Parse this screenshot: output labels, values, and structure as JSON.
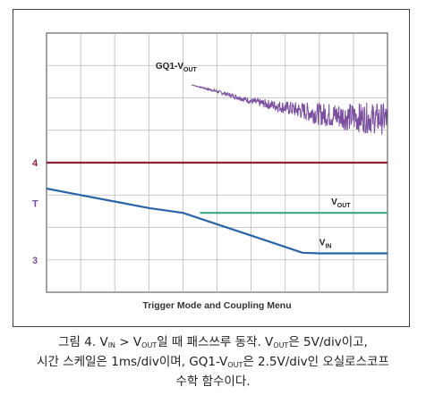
{
  "chart_data": {
    "type": "line",
    "footer": "Trigger Mode and Coupling Menu",
    "grid": true,
    "divisions": {
      "x": 10,
      "y": 8
    },
    "marker_labels": [
      "4",
      "T",
      "3"
    ],
    "series": [
      {
        "name_main": "GQ1-V",
        "name_sub": "OUT",
        "color": "#7a4f9e",
        "x_div": [
          4.25,
          5.0,
          6.0,
          7.0,
          8.0,
          9.0,
          10.0
        ],
        "y_div": [
          6.4,
          6.2,
          5.9,
          5.7,
          5.5,
          5.4,
          5.35
        ],
        "noise_div": [
          0.0,
          0.05,
          0.1,
          0.2,
          0.35,
          0.45,
          0.5
        ]
      },
      {
        "name": "4",
        "color": "#8b2131",
        "x_div": [
          0,
          10
        ],
        "y_div": [
          4.0,
          4.0
        ]
      },
      {
        "name_main": "V",
        "name_sub": "OUT",
        "color": "#3aa88a",
        "x_div": [
          4.5,
          10.0
        ],
        "y_div": [
          2.45,
          2.45
        ]
      },
      {
        "name_main": "V",
        "name_sub": "IN",
        "color": "#2a64a8",
        "x_div": [
          0,
          1.0,
          2.0,
          3.0,
          4.0,
          5.0,
          6.0,
          7.0,
          7.5,
          8.0,
          9.0,
          10.0
        ],
        "y_div": [
          3.2,
          3.0,
          2.8,
          2.6,
          2.45,
          2.1,
          1.75,
          1.4,
          1.22,
          1.2,
          1.2,
          1.2
        ]
      }
    ]
  },
  "caption": {
    "line1": [
      "그림 4. V",
      "IN",
      " > V",
      "OUT",
      "일 때 패스쓰루 동작. V",
      "OUT",
      "은 5V/div이고,"
    ],
    "line2": [
      "시간 스케일은 1ms/div이며, GQ1-V",
      "OUT",
      "은 2.5V/div인 오실로스코프"
    ],
    "line3": [
      "수학 함수이다."
    ]
  },
  "colors": {
    "grid": "#b9b9b9",
    "frame": "#444444",
    "text": "#333333"
  }
}
